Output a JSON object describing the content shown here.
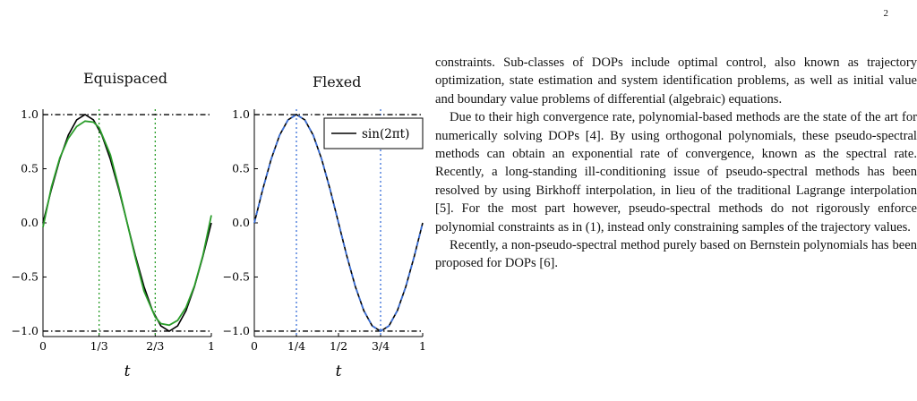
{
  "page": {
    "number": "2"
  },
  "figure": {
    "panels": [
      {
        "title": "Equispaced",
        "xlabel": "t",
        "x_ticks": [
          "0",
          "1/3",
          "2/3",
          "1"
        ],
        "y_ticks": [
          "1.0",
          "0.5",
          "0.0",
          "−0.5",
          "−1.0"
        ]
      },
      {
        "title": "Flexed",
        "xlabel": "t",
        "x_ticks": [
          "0",
          "1/4",
          "1/2",
          "3/4",
          "1"
        ],
        "y_ticks": [
          "1.0",
          "0.5",
          "0.0",
          "−0.5",
          "−1.0"
        ],
        "legend": "sin(2πt)"
      }
    ],
    "colors": {
      "reference": "#000000",
      "equispaced": "#2a9d2a",
      "flexed": "#3a6fd8",
      "knot_equispaced": "#2a9d2a",
      "knot_flexed": "#3a6fd8"
    }
  },
  "chart_data": [
    {
      "type": "line",
      "title": "Equispaced",
      "xlabel": "t",
      "ylabel": "",
      "xlim": [
        0,
        1
      ],
      "ylim": [
        -1.05,
        1.05
      ],
      "x_ticks": [
        0,
        0.3333,
        0.6667,
        1
      ],
      "y_ticks": [
        1.0,
        0.5,
        0.0,
        -0.5,
        -1.0
      ],
      "knots_x": [
        0.3333,
        0.6667
      ],
      "bounds_y": [
        1.0,
        -1.0
      ],
      "series": [
        {
          "x": [
            0,
            0.05,
            0.1,
            0.15,
            0.2,
            0.25,
            0.3,
            0.35,
            0.4,
            0.45,
            0.5,
            0.55,
            0.6,
            0.65,
            0.7,
            0.75,
            0.8,
            0.85,
            0.9,
            0.95,
            1.0
          ],
          "y": [
            0,
            0.309,
            0.588,
            0.809,
            0.951,
            1.0,
            0.951,
            0.809,
            0.588,
            0.309,
            0.0,
            -0.309,
            -0.588,
            -0.809,
            -0.951,
            -1.0,
            -0.951,
            -0.809,
            -0.588,
            -0.309,
            0.0
          ]
        },
        {
          "x": [
            0,
            0.05,
            0.1,
            0.15,
            0.2,
            0.25,
            0.3,
            0.3333,
            0.4,
            0.45,
            0.5,
            0.55,
            0.6,
            0.6667,
            0.7,
            0.75,
            0.8,
            0.85,
            0.9,
            0.95,
            1.0
          ],
          "y": [
            -0.04,
            0.33,
            0.6,
            0.78,
            0.89,
            0.94,
            0.93,
            0.88,
            0.63,
            0.33,
            0.0,
            -0.33,
            -0.63,
            -0.87,
            -0.93,
            -0.945,
            -0.9,
            -0.78,
            -0.58,
            -0.3,
            0.07
          ]
        }
      ]
    },
    {
      "type": "line",
      "title": "Flexed",
      "xlabel": "t",
      "ylabel": "",
      "xlim": [
        0,
        1
      ],
      "ylim": [
        -1.05,
        1.05
      ],
      "x_ticks": [
        0,
        0.25,
        0.5,
        0.75,
        1
      ],
      "y_ticks": [
        1.0,
        0.5,
        0.0,
        -0.5,
        -1.0
      ],
      "knots_x": [
        0.25,
        0.75
      ],
      "bounds_y": [
        1.0,
        -1.0
      ],
      "legend_position": "top-right",
      "series": [
        {
          "name": "sin(2πt)",
          "x": [
            0,
            0.05,
            0.1,
            0.15,
            0.2,
            0.25,
            0.3,
            0.35,
            0.4,
            0.45,
            0.5,
            0.55,
            0.6,
            0.65,
            0.7,
            0.75,
            0.8,
            0.85,
            0.9,
            0.95,
            1.0
          ],
          "y": [
            0,
            0.309,
            0.588,
            0.809,
            0.951,
            1.0,
            0.951,
            0.809,
            0.588,
            0.309,
            0.0,
            -0.309,
            -0.588,
            -0.809,
            -0.951,
            -1.0,
            -0.951,
            -0.809,
            -0.588,
            -0.309,
            0.0
          ]
        },
        {
          "x": [
            0,
            0.05,
            0.1,
            0.15,
            0.2,
            0.25,
            0.3,
            0.35,
            0.4,
            0.45,
            0.5,
            0.55,
            0.6,
            0.65,
            0.7,
            0.75,
            0.8,
            0.85,
            0.9,
            0.95,
            1.0
          ],
          "y": [
            0,
            0.309,
            0.588,
            0.809,
            0.951,
            1.0,
            0.951,
            0.809,
            0.588,
            0.309,
            0.0,
            -0.309,
            -0.588,
            -0.809,
            -0.951,
            -1.0,
            -0.951,
            -0.809,
            -0.588,
            -0.309,
            0.0
          ]
        }
      ]
    }
  ],
  "text": {
    "paragraphs": [
      "constraints. Sub-classes of DOPs include optimal control, also known as trajectory optimization, state estimation and system identification problems, as well as initial value and boundary value problems of differential (algebraic) equations.",
      "Due to their high convergence rate, polynomial-based methods are the state of the art for numerically solving DOPs [4]. By using orthogonal polynomials, these pseudo-spectral methods can obtain an exponential rate of convergence, known as the spectral rate. Recently, a long-standing ill-conditioning issue of pseudo-spectral methods has been resolved by using Birkhoff interpolation, in lieu of the traditional Lagrange interpolation [5]. For the most part however, pseudo-spectral methods do not rigorously enforce polynomial constraints as in (1), instead only constraining samples of the trajectory values.",
      "Recently, a non-pseudo-spectral method purely based on Bernstein polynomials has been proposed for DOPs [6]."
    ]
  }
}
